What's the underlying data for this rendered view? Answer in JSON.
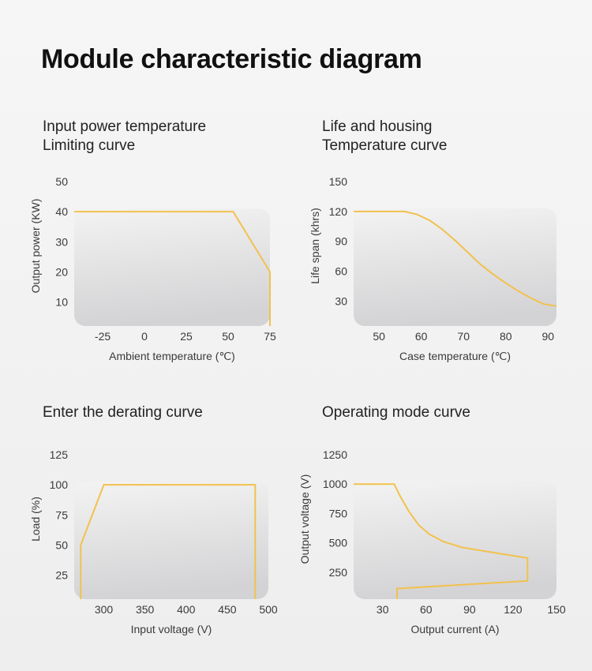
{
  "page": {
    "title": "Module characteristic diagram"
  },
  "colors": {
    "curve": "#f2c14e",
    "plot_bg_top": "#f3f3f3",
    "plot_bg_bottom": "#d3d3d5"
  },
  "chart_data": [
    {
      "id": "input-power",
      "type": "line",
      "title_lines": [
        "Input power temperature",
        "Limiting curve"
      ],
      "xlabel": "Ambient temperature (℃)",
      "ylabel": "Output power (KW)",
      "xticks": [
        -25,
        0,
        25,
        50,
        75
      ],
      "xlim": [
        -42,
        75
      ],
      "yticks": [
        10,
        20,
        30,
        40,
        50
      ],
      "ylim": [
        2,
        50
      ],
      "series": [
        {
          "points": [
            [
              -42,
              40
            ],
            [
              53,
              40
            ],
            [
              75,
              20
            ],
            [
              75,
              2
            ]
          ]
        }
      ]
    },
    {
      "id": "life-housing",
      "type": "line",
      "title_lines": [
        "Life and housing",
        "Temperature curve"
      ],
      "xlabel": "Case temperature (℃)",
      "ylabel": "Life span (khrs)",
      "xticks": [
        50,
        60,
        70,
        80,
        90
      ],
      "xlim": [
        44,
        92
      ],
      "yticks": [
        30,
        60,
        90,
        120,
        150
      ],
      "ylim": [
        5,
        150
      ],
      "series": [
        {
          "points": [
            [
              44,
              120
            ],
            [
              56,
              120
            ],
            [
              59,
              117
            ],
            [
              62,
              111
            ],
            [
              65,
              102
            ],
            [
              68,
              91
            ],
            [
              71,
              79
            ],
            [
              74,
              67
            ],
            [
              77,
              57
            ],
            [
              80,
              48
            ],
            [
              83,
              40
            ],
            [
              86,
              33
            ],
            [
              89,
              27
            ],
            [
              92,
              25
            ]
          ]
        }
      ]
    },
    {
      "id": "derating",
      "type": "line",
      "title_lines": [
        "Enter the derating curve"
      ],
      "xlabel": "Input voltage (V)",
      "ylabel": "Load (%)",
      "xticks": [
        300,
        350,
        400,
        450,
        500
      ],
      "xlim": [
        264,
        500
      ],
      "yticks": [
        25,
        50,
        75,
        100,
        125
      ],
      "ylim": [
        5,
        125
      ],
      "series": [
        {
          "points": [
            [
              272,
              5
            ],
            [
              272,
              50
            ],
            [
              300,
              100
            ],
            [
              484,
              100
            ],
            [
              484,
              5
            ]
          ]
        }
      ]
    },
    {
      "id": "operating-mode",
      "type": "line",
      "title_lines": [
        "Operating mode curve"
      ],
      "xlabel": "Output current (A)",
      "ylabel": "Output voltage (V)",
      "xticks": [
        30,
        60,
        90,
        120,
        150
      ],
      "xlim": [
        10,
        150
      ],
      "yticks": [
        250,
        500,
        750,
        1000,
        1250
      ],
      "ylim": [
        20,
        1250
      ],
      "series": [
        {
          "points": [
            [
              10,
              1000
            ],
            [
              38,
              1000
            ],
            [
              42,
              900
            ],
            [
              48,
              770
            ],
            [
              55,
              650
            ],
            [
              62,
              575
            ],
            [
              72,
              510
            ],
            [
              85,
              460
            ],
            [
              100,
              430
            ],
            [
              115,
              400
            ],
            [
              130,
              370
            ],
            [
              130,
              175
            ],
            [
              40,
              110
            ],
            [
              40,
              20
            ]
          ]
        }
      ]
    }
  ]
}
